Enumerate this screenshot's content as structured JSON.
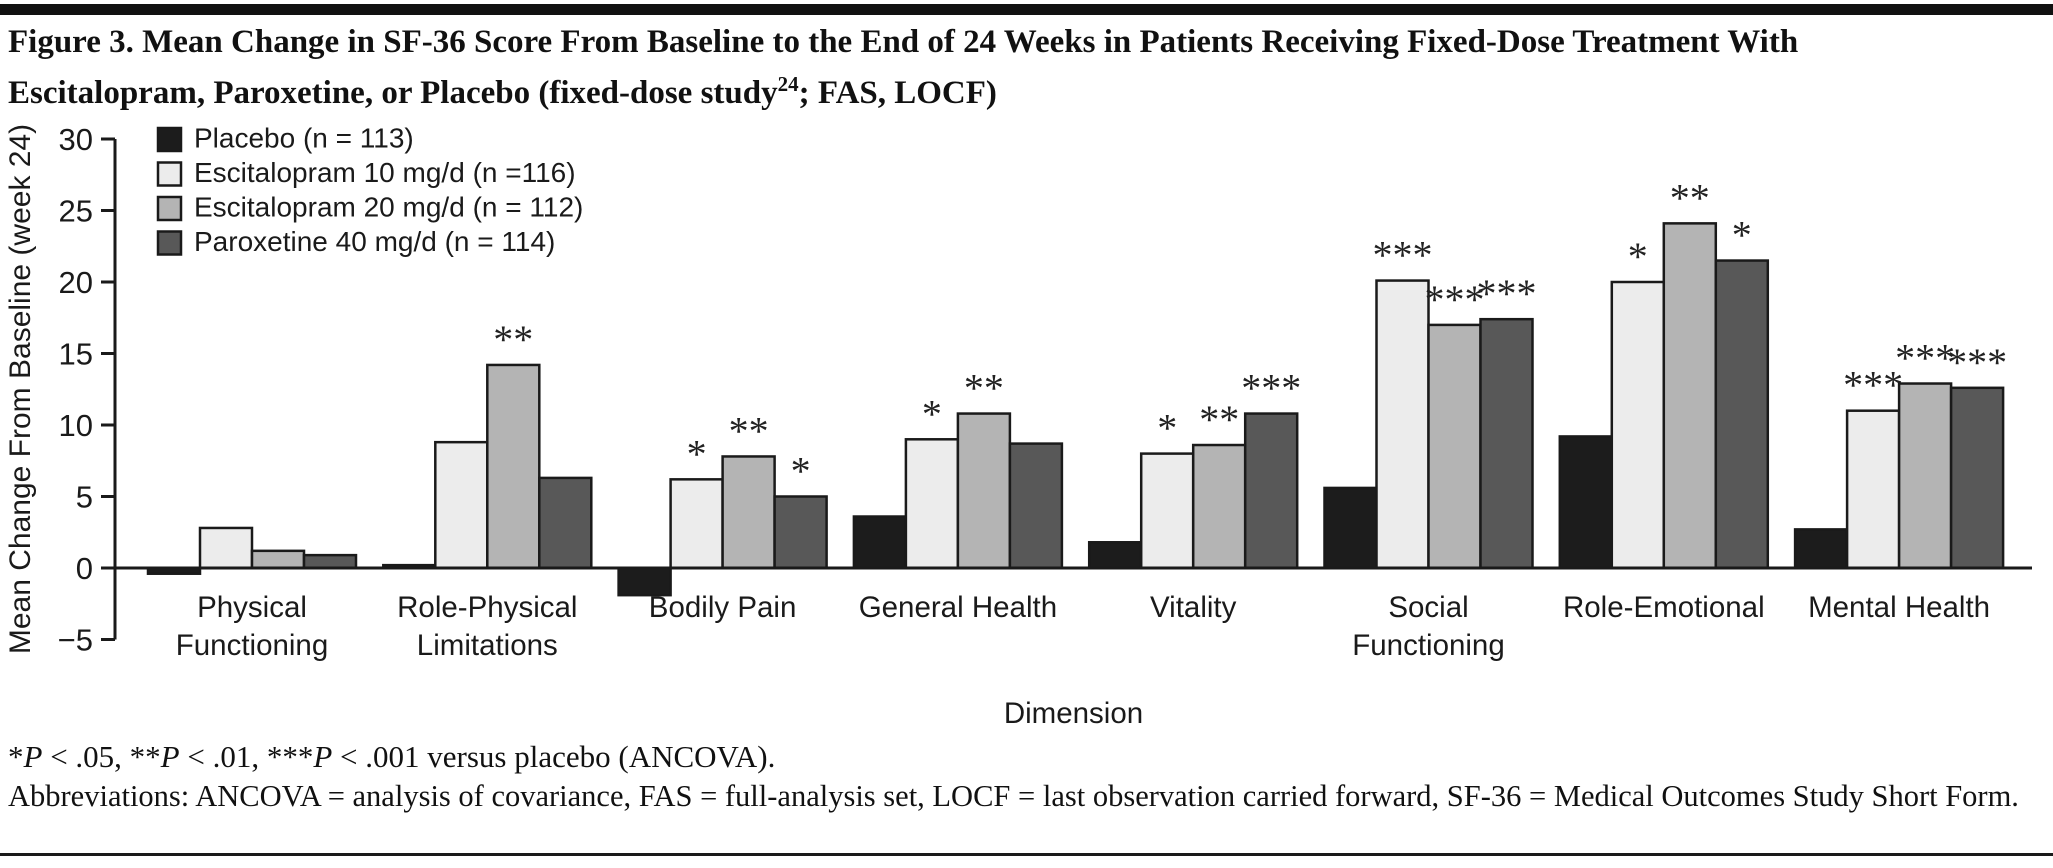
{
  "figure": {
    "title_line1": "Figure 3. Mean Change in SF-36 Score From Baseline to the End of 24 Weeks in Patients Receiving Fixed-Dose Treatment With",
    "title_line2_pre": "Escitalopram, Paroxetine, or Placebo (fixed-dose study",
    "title_sup": "24",
    "title_line2_post": "; FAS, LOCF)",
    "significance_note": "*P < .05, **P < .01, ***P < .001 versus placebo (ANCOVA).",
    "abbreviations_note": "Abbreviations: ANCOVA = analysis of covariance, FAS = full-analysis set, LOCF = last observation carried forward, SF-36 = Medical Outcomes Study Short Form."
  },
  "chart_data": {
    "type": "bar",
    "title": "Mean Change in SF-36 Score From Baseline to the End of 24 Weeks",
    "xlabel": "Dimension",
    "ylabel": "Mean Change From Baseline (week 24)",
    "ylim": [
      -5,
      30
    ],
    "yticks": [
      30,
      25,
      20,
      15,
      10,
      5,
      0,
      -5
    ],
    "grid": false,
    "legend_position": "upper-left-inside",
    "categories": [
      [
        "Physical",
        "Functioning"
      ],
      [
        "Role-Physical",
        "Limitations"
      ],
      [
        "Bodily Pain"
      ],
      [
        "General Health"
      ],
      [
        "Vitality"
      ],
      [
        "Social",
        "Functioning"
      ],
      [
        "Role-Emotional"
      ],
      [
        "Mental Health"
      ]
    ],
    "series": [
      {
        "name": "Placebo (n = 113)",
        "color": "#1c1c1c",
        "values": [
          -0.4,
          0.2,
          -1.9,
          3.6,
          1.8,
          5.6,
          9.2,
          2.7
        ],
        "markers": [
          "",
          "",
          "",
          "",
          "",
          "",
          "",
          ""
        ]
      },
      {
        "name": "Escitalopram 10 mg/d (n =116)",
        "color": "#ececec",
        "values": [
          2.8,
          8.8,
          6.2,
          9.0,
          8.0,
          20.1,
          20.0,
          11.0
        ],
        "markers": [
          "",
          "",
          "*",
          "*",
          "*",
          "***",
          "*",
          "***"
        ]
      },
      {
        "name": "Escitalopram 20 mg/d (n = 112)",
        "color": "#b4b4b4",
        "values": [
          1.2,
          14.2,
          7.8,
          10.8,
          8.6,
          17.0,
          24.1,
          12.9
        ],
        "markers": [
          "",
          "**",
          "**",
          "**",
          "**",
          "***",
          "**",
          "***"
        ]
      },
      {
        "name": "Paroxetine 40 mg/d (n = 114)",
        "color": "#585858",
        "values": [
          0.9,
          6.3,
          5.0,
          8.7,
          10.8,
          17.4,
          21.5,
          12.6
        ],
        "markers": [
          "",
          "",
          "*",
          "",
          "***",
          "***",
          "*",
          "***"
        ]
      }
    ]
  }
}
